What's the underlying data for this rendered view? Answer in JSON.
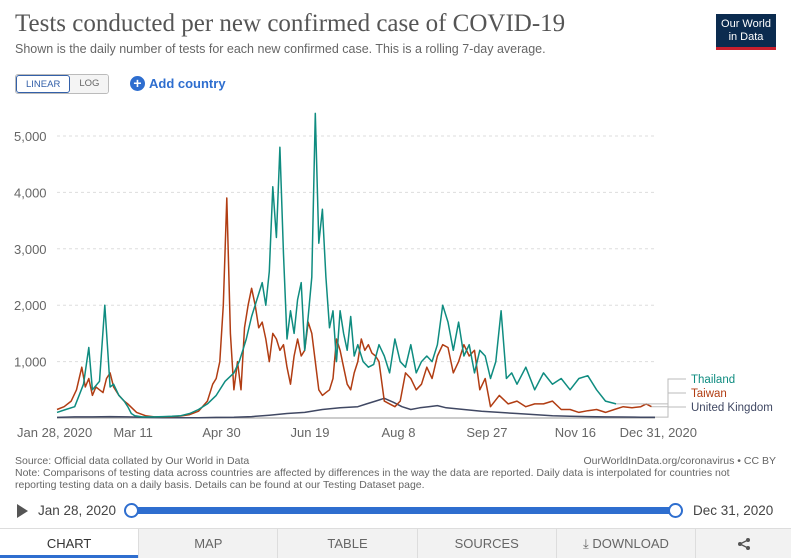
{
  "header": {
    "title": "Tests conducted per new confirmed case of COVID-19",
    "subtitle": "Shown is the daily number of tests for each new confirmed case. This is a rolling 7-day average.",
    "logo_line1": "Our World",
    "logo_line2": "in Data"
  },
  "controls": {
    "linear_label": "LINEAR",
    "log_label": "LOG",
    "add_country_label": "Add country",
    "add_icon": "plus-icon"
  },
  "chart_data": {
    "type": "line",
    "title": "Tests conducted per new confirmed case of COVID-19",
    "xlabel": "",
    "ylabel": "",
    "ylim": [
      0,
      5000
    ],
    "yticks": [
      1000,
      2000,
      3000,
      4000,
      5000
    ],
    "ytick_labels": [
      "1,000",
      "2,000",
      "3,000",
      "4,000",
      "5,000"
    ],
    "xlim": [
      0,
      338
    ],
    "xticks": [
      0,
      43,
      93,
      143,
      193,
      243,
      293,
      338
    ],
    "xtick_labels": [
      "Jan 28, 2020",
      "Mar 11",
      "Apr 30",
      "Jun 19",
      "Aug 8",
      "Sep 27",
      "Nov 16",
      "Dec 31, 2020"
    ],
    "grid": "horizontal dashed",
    "legend": "right-end labels",
    "series": [
      {
        "name": "Thailand",
        "color": "#0f8c80",
        "x": [
          0,
          5,
          10,
          15,
          18,
          20,
          24,
          27,
          30,
          32,
          35,
          38,
          40,
          42,
          44,
          48,
          55,
          60,
          65,
          70,
          75,
          80,
          85,
          90,
          95,
          100,
          103,
          105,
          107,
          110,
          113,
          116,
          118,
          120,
          122,
          124,
          126,
          128,
          130,
          132,
          134,
          136,
          138,
          140,
          142,
          144,
          146,
          148,
          150,
          152,
          154,
          156,
          158,
          160,
          162,
          164,
          166,
          168,
          170,
          173,
          176,
          179,
          182,
          185,
          188,
          191,
          194,
          197,
          200,
          203,
          206,
          209,
          212,
          215,
          218,
          221,
          224,
          227,
          230,
          233,
          236,
          239,
          242,
          245,
          248,
          251,
          254,
          257,
          260,
          265,
          270,
          275,
          280,
          285,
          290,
          295,
          300,
          305,
          310,
          316
        ],
        "values": [
          100,
          150,
          200,
          600,
          1250,
          500,
          650,
          2000,
          550,
          600,
          400,
          300,
          200,
          80,
          40,
          20,
          20,
          25,
          30,
          40,
          80,
          150,
          250,
          400,
          650,
          800,
          1000,
          1200,
          1400,
          1800,
          2100,
          2400,
          2000,
          2600,
          4100,
          3200,
          4800,
          2900,
          1400,
          1900,
          1500,
          2100,
          2400,
          1200,
          1800,
          2500,
          5400,
          3100,
          3700,
          2500,
          1600,
          1900,
          1000,
          1900,
          1500,
          1200,
          1800,
          1100,
          1300,
          1000,
          900,
          950,
          1300,
          1100,
          800,
          1400,
          1000,
          900,
          1300,
          800,
          1000,
          1100,
          1000,
          1300,
          2000,
          1700,
          1200,
          1700,
          1100,
          1300,
          800,
          1200,
          1100,
          700,
          1000,
          1900,
          700,
          800,
          600,
          900,
          500,
          800,
          600,
          700,
          500,
          700,
          750,
          500,
          300,
          250
        ]
      },
      {
        "name": "Taiwan",
        "color": "#b13d13",
        "x": [
          0,
          4,
          8,
          11,
          14,
          16,
          18,
          20,
          22,
          24,
          26,
          28,
          30,
          32,
          35,
          38,
          40,
          45,
          50,
          55,
          60,
          65,
          70,
          75,
          80,
          85,
          88,
          90,
          92,
          94,
          96,
          98,
          100,
          102,
          104,
          106,
          108,
          110,
          112,
          114,
          116,
          118,
          120,
          122,
          124,
          126,
          128,
          130,
          132,
          134,
          136,
          138,
          140,
          142,
          144,
          146,
          148,
          150,
          152,
          154,
          156,
          158,
          160,
          162,
          164,
          166,
          168,
          170,
          172,
          174,
          176,
          178,
          180,
          182,
          185,
          188,
          191,
          194,
          197,
          200,
          203,
          206,
          209,
          212,
          215,
          218,
          221,
          224,
          227,
          230,
          233,
          236,
          239,
          242,
          245,
          250,
          255,
          260,
          265,
          270,
          275,
          280,
          285,
          290,
          295,
          300,
          305,
          310,
          315,
          320,
          325,
          330,
          333,
          336
        ],
        "values": [
          150,
          200,
          300,
          500,
          900,
          550,
          700,
          400,
          550,
          500,
          450,
          700,
          800,
          550,
          400,
          300,
          250,
          100,
          40,
          20,
          20,
          25,
          35,
          60,
          120,
          300,
          600,
          700,
          1000,
          2000,
          3900,
          1500,
          500,
          1000,
          500,
          1600,
          2000,
          2300,
          2000,
          1600,
          1700,
          1400,
          1000,
          1500,
          1400,
          1200,
          1300,
          900,
          600,
          1100,
          1400,
          1100,
          1200,
          1700,
          1500,
          1000,
          500,
          400,
          450,
          500,
          700,
          1400,
          1200,
          900,
          600,
          500,
          800,
          1000,
          1400,
          1200,
          1300,
          1150,
          1100,
          1000,
          300,
          250,
          200,
          300,
          800,
          700,
          500,
          600,
          900,
          700,
          1100,
          1300,
          1250,
          800,
          1000,
          1300,
          1100,
          1200,
          500,
          700,
          200,
          400,
          250,
          300,
          200,
          250,
          250,
          300,
          150,
          150,
          100,
          130,
          150,
          100,
          150,
          200,
          180,
          200,
          250,
          200
        ]
      },
      {
        "name": "United Kingdom",
        "color": "#404863",
        "x": [
          0,
          10,
          20,
          30,
          40,
          50,
          60,
          70,
          80,
          90,
          100,
          110,
          120,
          130,
          140,
          150,
          160,
          170,
          175,
          180,
          185,
          190,
          195,
          200,
          205,
          210,
          215,
          220,
          230,
          240,
          250,
          260,
          270,
          280,
          290,
          300,
          310,
          320,
          330,
          338
        ],
        "values": [
          10,
          20,
          20,
          25,
          20,
          10,
          5,
          5,
          5,
          10,
          15,
          25,
          50,
          80,
          100,
          150,
          180,
          200,
          250,
          300,
          350,
          280,
          200,
          150,
          180,
          200,
          220,
          180,
          150,
          120,
          100,
          80,
          60,
          40,
          30,
          25,
          20,
          18,
          15,
          15
        ]
      }
    ]
  },
  "footer": {
    "source": "Source: Official data collated by Our World in Data",
    "cite": "OurWorldInData.org/coronavirus • CC BY",
    "note": "Note: Comparisons of testing data across countries are affected by differences in the way the data are reported. Daily data is interpolated for countries not reporting testing data on a daily basis. Details can be found at our Testing Dataset page."
  },
  "timeline": {
    "start_label": "Jan 28, 2020",
    "end_label": "Dec 31, 2020"
  },
  "tabs": [
    {
      "label": "CHART",
      "icon": ""
    },
    {
      "label": "MAP",
      "icon": ""
    },
    {
      "label": "TABLE",
      "icon": ""
    },
    {
      "label": "SOURCES",
      "icon": ""
    },
    {
      "label": "DOWNLOAD",
      "icon": "⤓"
    },
    {
      "label": "",
      "icon": "share-icon"
    }
  ]
}
